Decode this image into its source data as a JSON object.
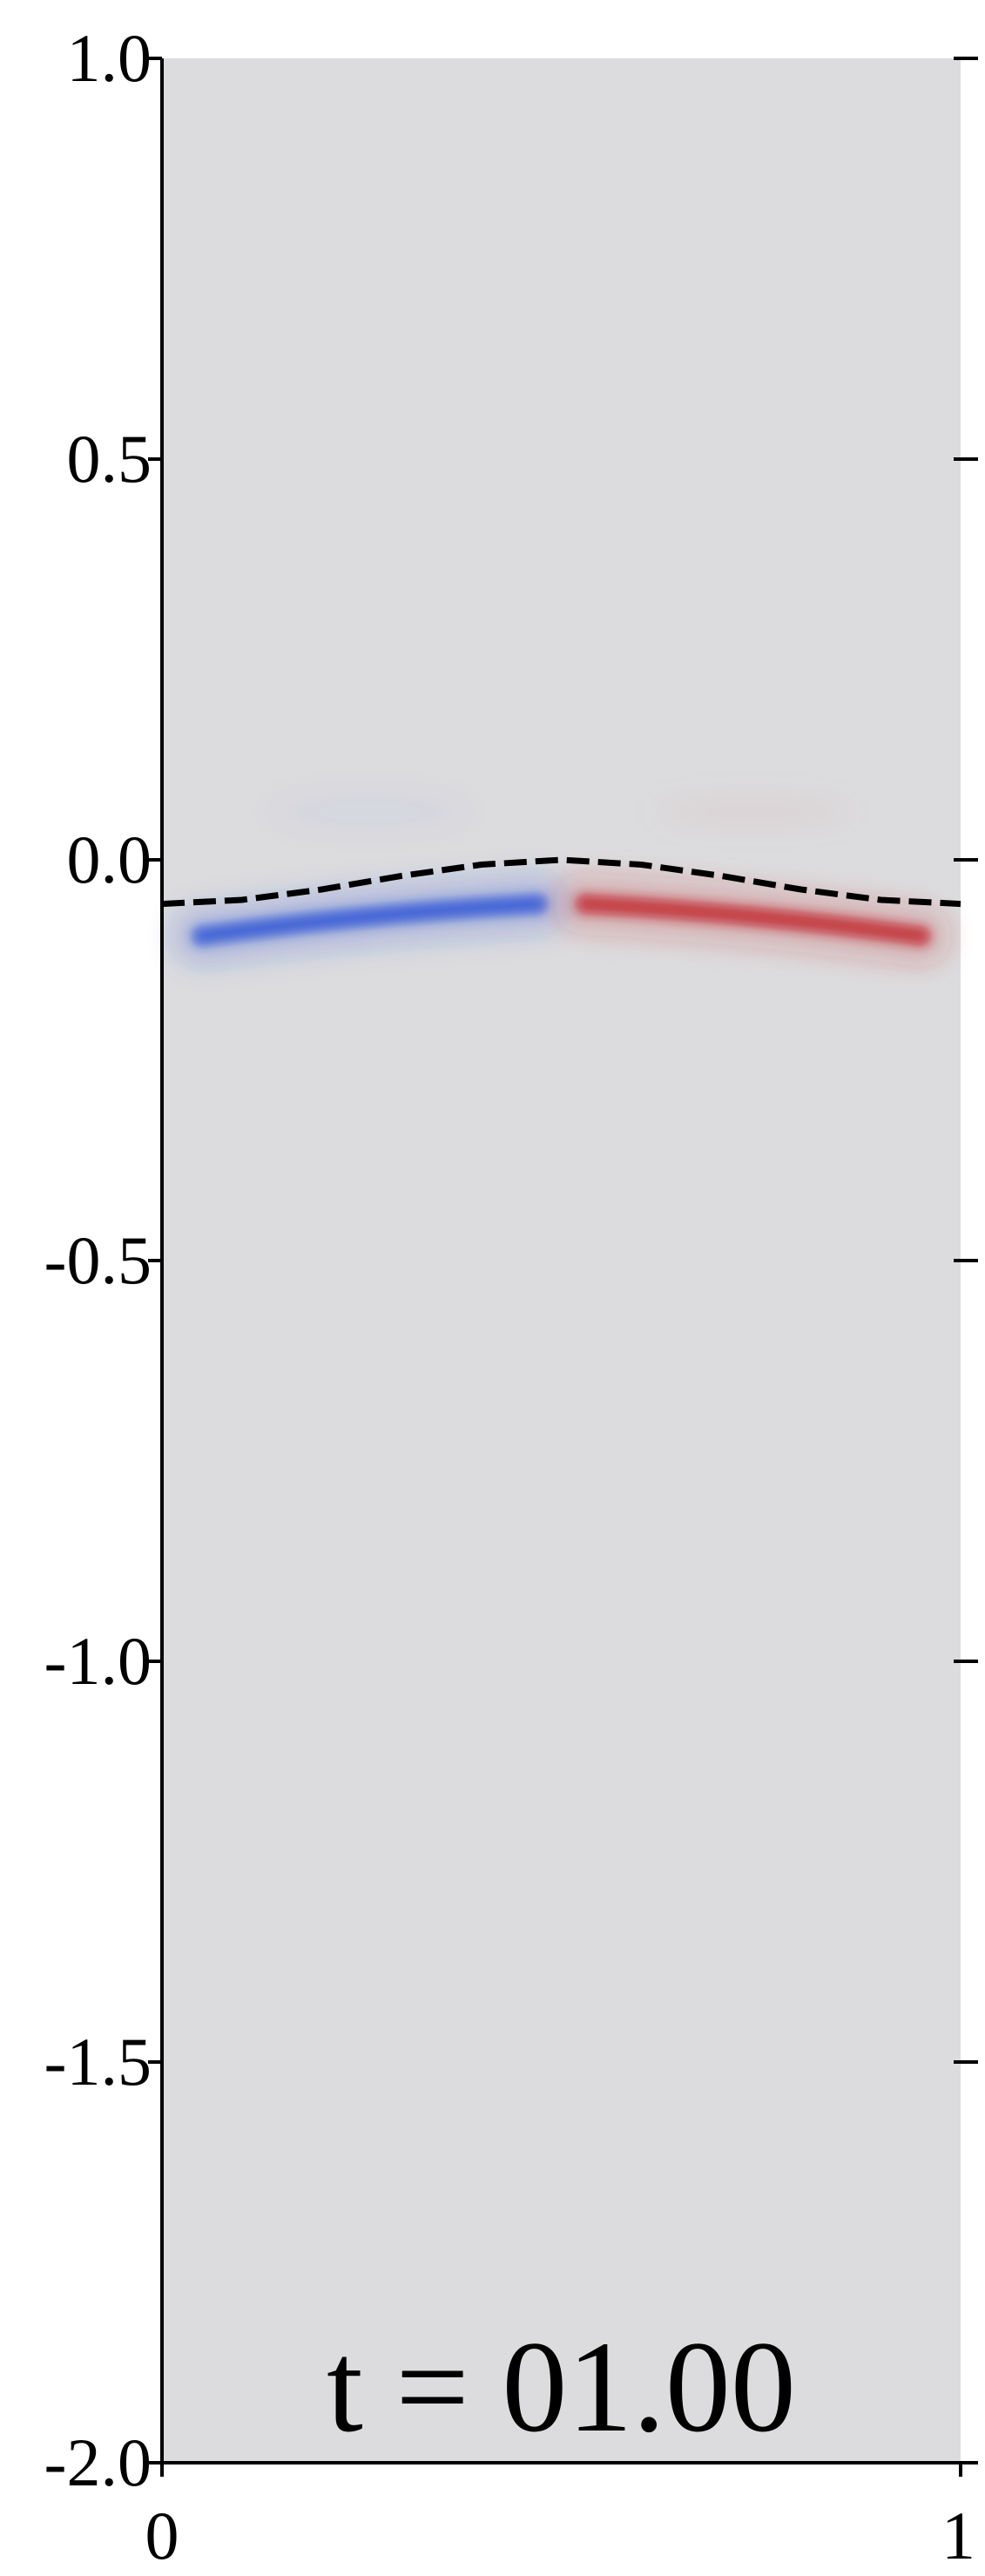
{
  "chart_data": {
    "type": "heatmap",
    "title": "",
    "xlabel": "",
    "ylabel": "",
    "xlim": [
      0,
      1
    ],
    "ylim": [
      -2.0,
      1.0
    ],
    "x_ticks": [
      {
        "value": 0,
        "label": "0"
      },
      {
        "value": 1,
        "label": "1"
      }
    ],
    "y_ticks": [
      {
        "value": 1.0,
        "label": "1.0"
      },
      {
        "value": 0.5,
        "label": "0.5"
      },
      {
        "value": 0.0,
        "label": "0.0"
      },
      {
        "value": -0.5,
        "label": "-0.5"
      },
      {
        "value": -1.0,
        "label": "-1.0"
      },
      {
        "value": -1.5,
        "label": "-1.5"
      },
      {
        "value": -2.0,
        "label": "-2.0"
      }
    ],
    "background_color": "#dcdcde",
    "annotation": "t = 01.00",
    "interface_curve": {
      "style": "dashed",
      "color": "#000000",
      "x": [
        0.0,
        0.1,
        0.2,
        0.3,
        0.4,
        0.5,
        0.6,
        0.7,
        0.8,
        0.9,
        1.0
      ],
      "y": [
        -0.055,
        -0.05,
        -0.037,
        -0.02,
        -0.006,
        0.0,
        -0.006,
        -0.02,
        -0.037,
        -0.05,
        -0.055
      ]
    },
    "vorticity_regions": [
      {
        "sign": "negative",
        "color": "#2a4fd6",
        "x": [
          0.05,
          0.47
        ],
        "y_center": [
          -0.095,
          -0.055
        ]
      },
      {
        "sign": "positive",
        "color": "#c0202a",
        "x": [
          0.53,
          0.95
        ],
        "y_center": [
          -0.055,
          -0.095
        ]
      }
    ]
  }
}
